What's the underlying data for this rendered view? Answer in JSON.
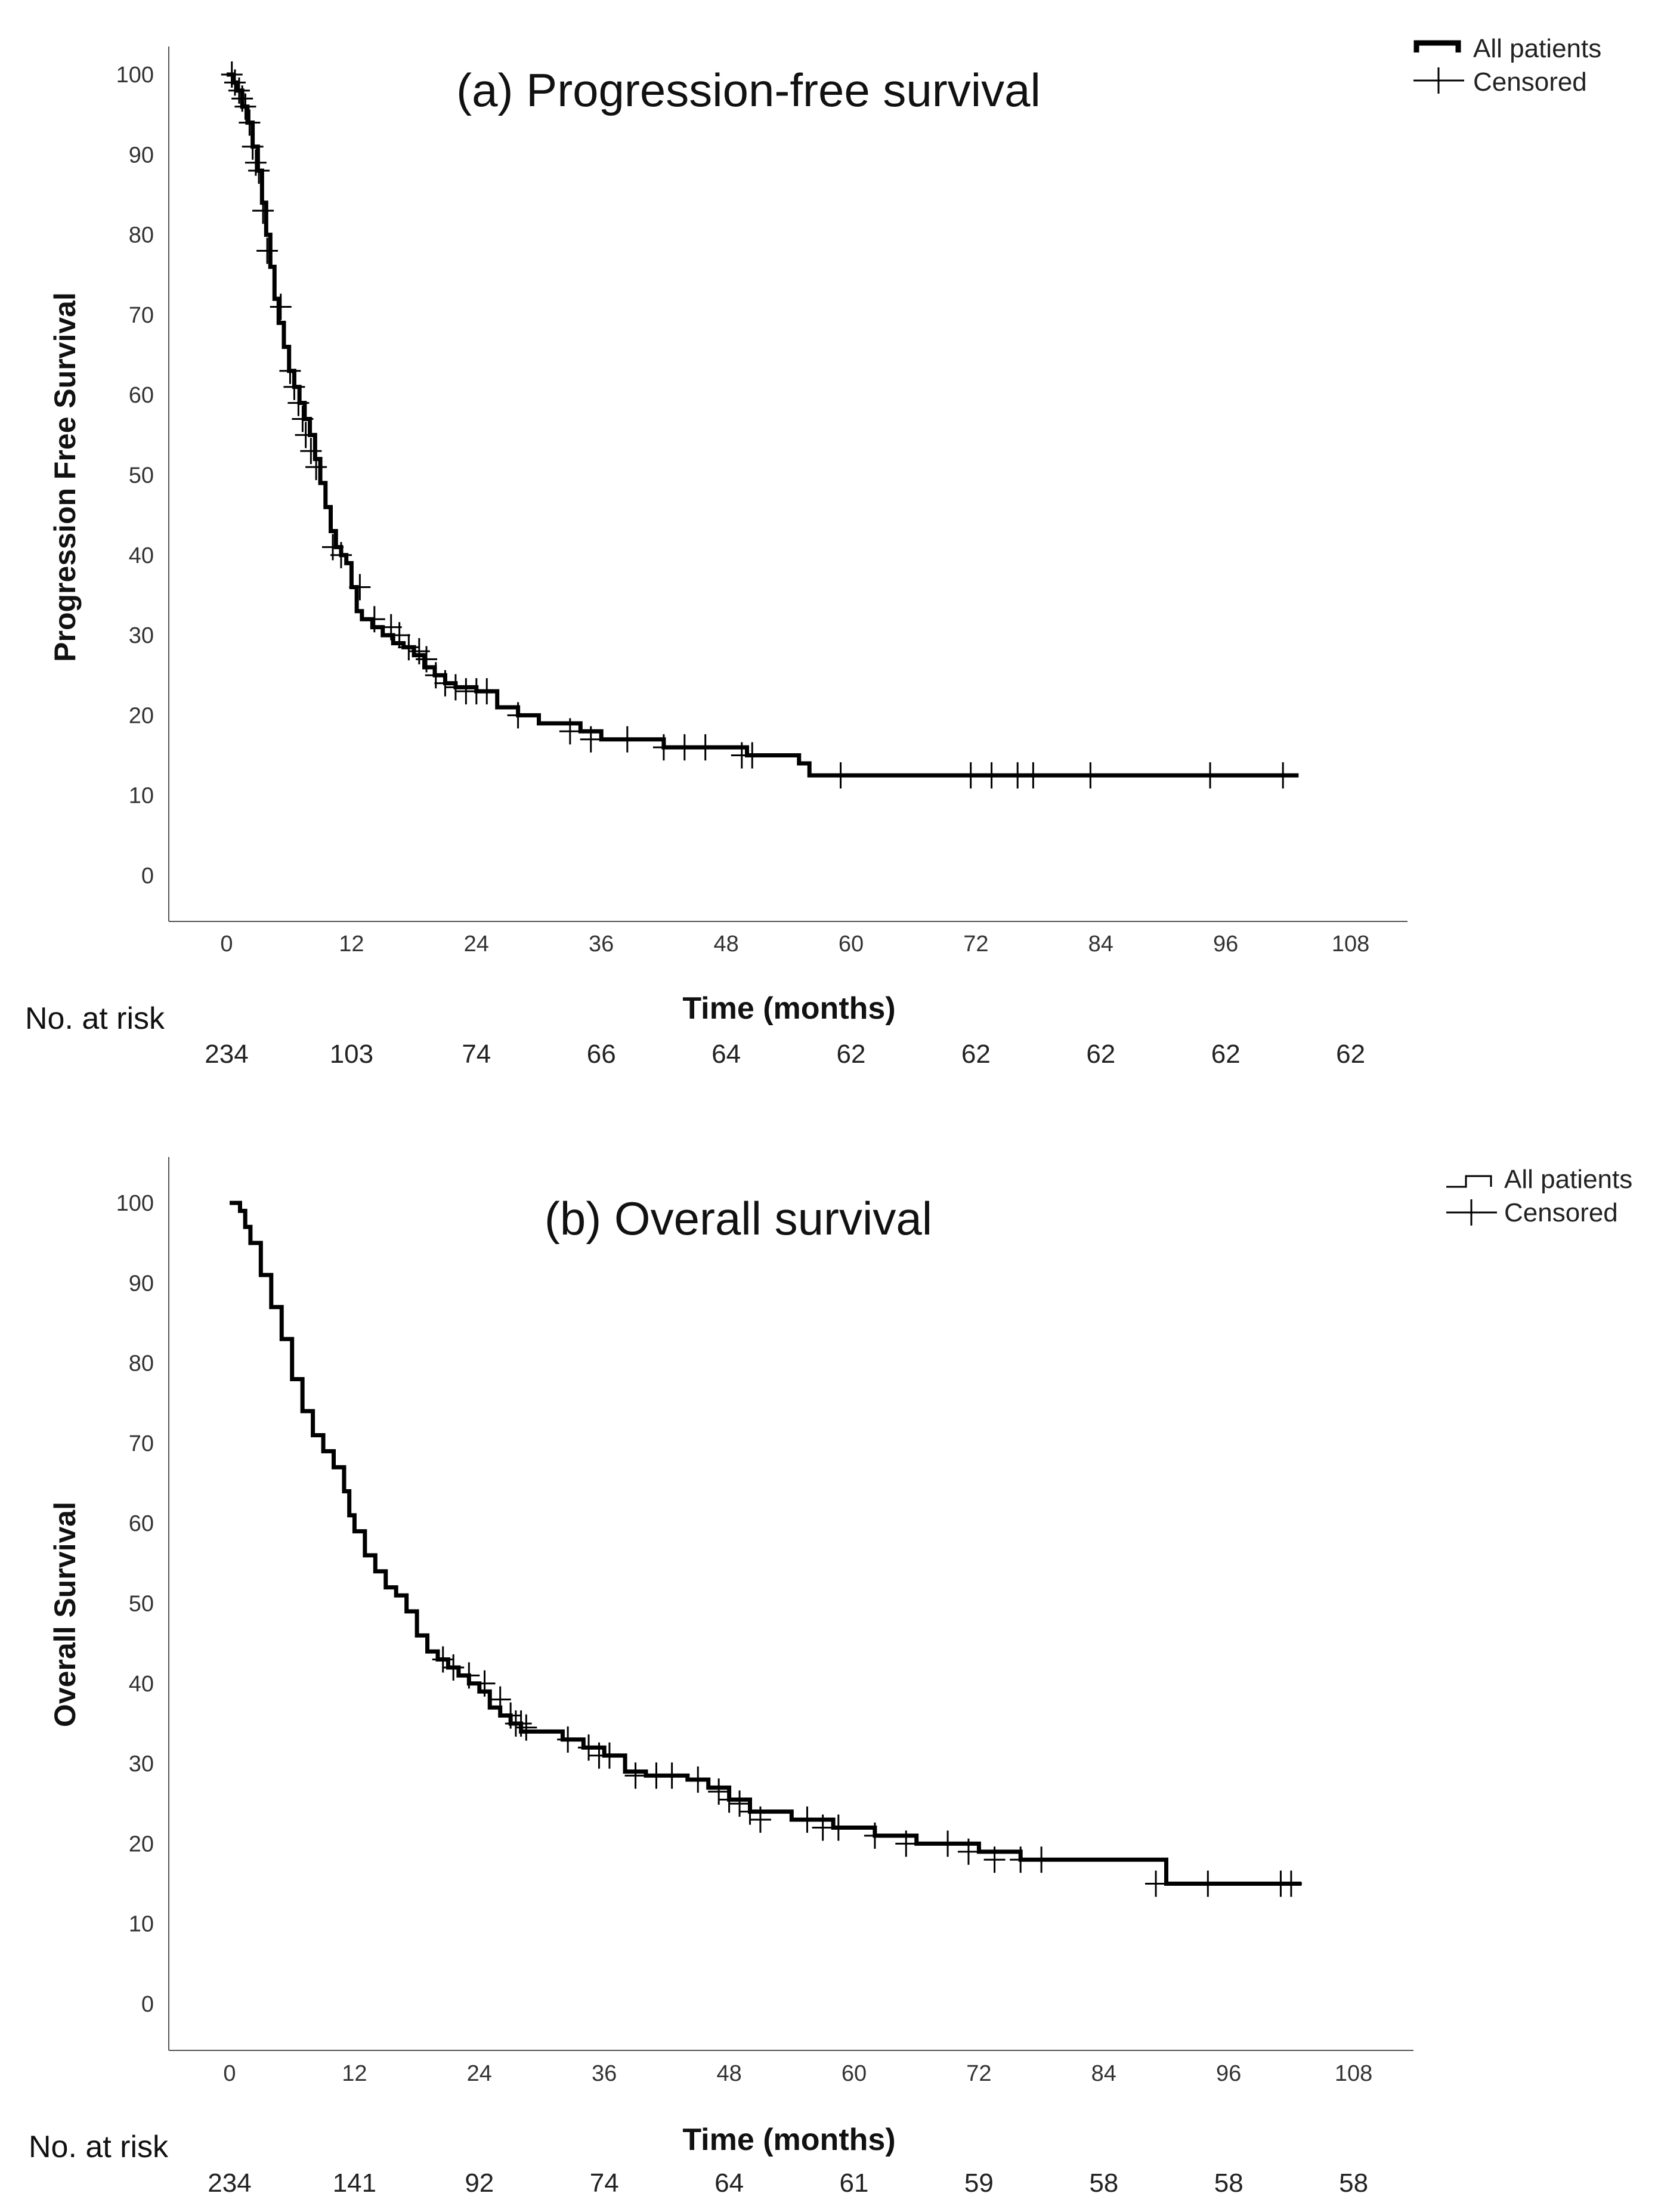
{
  "chart_data": [
    {
      "type": "line",
      "step": true,
      "title": "(a) Progression-free survival",
      "xlabel": "Time (months)",
      "ylabel": "Progression Free Survival",
      "xlim": [
        0,
        108
      ],
      "ylim": [
        0,
        100
      ],
      "xticks": [
        0,
        12,
        24,
        36,
        48,
        60,
        72,
        84,
        96,
        108
      ],
      "yticks": [
        0,
        10,
        20,
        30,
        40,
        50,
        60,
        70,
        80,
        90,
        100
      ],
      "legend": {
        "position": "top-right",
        "entries": [
          {
            "label": "All patients",
            "symbol": "line"
          },
          {
            "label": "Censored",
            "symbol": "plus"
          }
        ]
      },
      "risk_table": {
        "label": "No. at risk",
        "times": [
          0,
          12,
          24,
          36,
          48,
          60,
          72,
          84,
          96,
          108
        ],
        "counts": [
          "234",
          "103",
          "74",
          "66",
          "64",
          "62",
          "62",
          "62",
          "62",
          "62"
        ]
      },
      "series": [
        {
          "name": "All patients",
          "x": [
            0,
            0.6,
            1.0,
            1.5,
            2.0,
            2.5,
            3.0,
            3.4,
            3.8,
            4.2,
            4.6,
            5.0,
            5.5,
            6.0,
            6.5,
            7.0,
            7.5,
            8.0,
            8.5,
            9.0,
            9.5,
            10.0,
            10.5,
            11.0,
            11.5,
            12.0,
            12.5,
            13.0,
            14.0,
            15.0,
            16.0,
            17.0,
            18.0,
            19.0,
            20.0,
            21.0,
            22.0,
            24.0,
            26.0,
            28.0,
            30.0,
            34.0,
            36.0,
            40.0,
            42.0,
            46.0,
            50.0,
            54.0,
            55.0,
            56.0,
            103.0
          ],
          "y": [
            100,
            99,
            98,
            96,
            94,
            91,
            88,
            84,
            80,
            76,
            72,
            69,
            66,
            63,
            61,
            59,
            57,
            55,
            52,
            49,
            46,
            43,
            41,
            40,
            39,
            36,
            33,
            32,
            31,
            30,
            29,
            28.5,
            27.5,
            26,
            25,
            24,
            23.5,
            23,
            21,
            20,
            19,
            18,
            17,
            17,
            16,
            16,
            15,
            15,
            14,
            12.5,
            12.5
          ]
        }
      ],
      "censored": {
        "x": [
          0.5,
          0.8,
          1.2,
          1.5,
          1.8,
          2.2,
          2.5,
          2.8,
          3.1,
          3.5,
          3.9,
          5.2,
          6.1,
          6.5,
          6.9,
          7.3,
          7.6,
          8.1,
          8.6,
          10.2,
          11.0,
          12.8,
          14.2,
          15.8,
          16.6,
          17.5,
          18.5,
          19.2,
          20.1,
          21.0,
          22.0,
          23.0,
          24.0,
          25.0,
          28.0,
          33.0,
          35.0,
          38.5,
          42.0,
          44.0,
          46.0,
          49.5,
          50.5,
          59.0,
          71.5,
          73.5,
          76.0,
          77.5,
          83.0,
          94.5,
          101.5
        ],
        "y": [
          100,
          99,
          98,
          97,
          96,
          94,
          91,
          89,
          88,
          83,
          78,
          71,
          63,
          61,
          59,
          57,
          55,
          53,
          51,
          41,
          40,
          36,
          32,
          31,
          30,
          28.5,
          28,
          27,
          25,
          24,
          23.5,
          23,
          23,
          23,
          20,
          18,
          17,
          17,
          16,
          16,
          16,
          15,
          15,
          12.5,
          12.5,
          12.5,
          12.5,
          12.5,
          12.5,
          12.5,
          12.5
        ]
      }
    },
    {
      "type": "line",
      "step": true,
      "title": "(b) Overall survival",
      "xlabel": "Time (months)",
      "ylabel": "Overall Survival",
      "xlim": [
        0,
        108
      ],
      "ylim": [
        0,
        100
      ],
      "xticks": [
        0,
        12,
        24,
        36,
        48,
        60,
        72,
        84,
        96,
        108
      ],
      "yticks": [
        0,
        10,
        20,
        30,
        40,
        50,
        60,
        70,
        80,
        90,
        100
      ],
      "legend": {
        "position": "top-right",
        "entries": [
          {
            "label": "All patients",
            "symbol": "line"
          },
          {
            "label": "Censored",
            "symbol": "plus"
          }
        ]
      },
      "risk_table": {
        "label": "No. at risk",
        "times": [
          0,
          12,
          24,
          36,
          48,
          60,
          72,
          84,
          96,
          108
        ],
        "counts": [
          "234",
          "141",
          "92",
          "74",
          "64",
          "61",
          "59",
          "58",
          "58",
          "58"
        ]
      },
      "series": [
        {
          "name": "All patients",
          "x": [
            0,
            1.0,
            1.5,
            2.0,
            3.0,
            4.0,
            5.0,
            6.0,
            7.0,
            8.0,
            9.0,
            10.0,
            11.0,
            11.5,
            12.0,
            13.0,
            14.0,
            15.0,
            16.0,
            17.0,
            18.0,
            19.0,
            20.0,
            21.0,
            22.0,
            23.0,
            24.0,
            25.0,
            26.0,
            27.0,
            28.0,
            30.0,
            32.0,
            34.0,
            36.0,
            38.0,
            40.0,
            42.0,
            44.0,
            46.0,
            48.0,
            50.0,
            54.0,
            58.0,
            62.0,
            66.0,
            70.0,
            72.0,
            76.0,
            84.0,
            90.0,
            103.0
          ],
          "y": [
            100,
            99,
            97,
            95,
            91,
            87,
            83,
            78,
            74,
            71,
            69,
            67,
            64,
            61,
            59,
            56,
            54,
            52,
            51,
            49,
            46,
            44,
            43,
            42,
            41,
            40,
            39,
            37,
            36,
            35,
            34,
            34,
            33,
            32,
            31,
            29,
            28.5,
            28.5,
            28,
            27,
            25.5,
            24,
            23,
            22,
            21,
            20,
            20,
            19,
            18,
            18,
            15,
            15
          ]
        }
      ],
      "censored": {
        "x": [
          20.5,
          21.5,
          23.0,
          24.5,
          26.0,
          27.0,
          27.5,
          28.0,
          28.5,
          32.5,
          34.5,
          35.5,
          36.5,
          39.0,
          41.0,
          42.5,
          45.0,
          47.0,
          48.0,
          49.0,
          50.0,
          51.0,
          55.5,
          57.0,
          58.5,
          62.0,
          65.0,
          69.0,
          71.0,
          73.5,
          76.0,
          78.0,
          89.0,
          94.0,
          101.0,
          102.0
        ],
        "y": [
          43,
          42,
          41,
          40,
          38,
          36,
          35,
          35,
          34.5,
          33,
          32,
          31,
          31,
          28.5,
          28.5,
          28.5,
          28,
          26.5,
          25.5,
          25,
          24,
          23,
          23,
          22,
          22,
          21,
          20,
          20,
          19,
          18,
          18,
          18,
          15,
          15,
          15,
          15
        ]
      }
    }
  ]
}
